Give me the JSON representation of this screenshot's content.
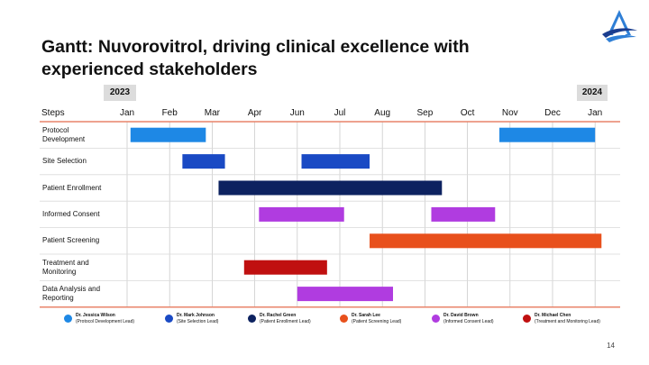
{
  "slide": {
    "title": "Gantt: Nuvorovitrol, driving clinical excellence with experienced stakeholders",
    "page_number": "14",
    "year_left": "2023",
    "year_right": "2024",
    "steps_header": "Steps"
  },
  "colors": {
    "divider": "#e8846a",
    "grid": "#cccccc",
    "row_line": "#d9d9d9"
  },
  "chart_data": {
    "type": "gantt",
    "title": "",
    "months": [
      "Jan",
      "Feb",
      "Mar",
      "Apr",
      "Jun",
      "Jul",
      "Aug",
      "Sep",
      "Oct",
      "Nov",
      "Dec",
      "Jan"
    ],
    "tasks": [
      {
        "name": "Protocol Development",
        "color": "#1e88e5",
        "bars": [
          [
            0.08,
            1.85
          ],
          [
            8.75,
            11.0
          ]
        ]
      },
      {
        "name": "Site Selection",
        "color": "#1a4ac4",
        "bars": [
          [
            1.3,
            2.3
          ],
          [
            4.1,
            5.7
          ]
        ]
      },
      {
        "name": "Patient Enrollment",
        "color": "#0d2260",
        "bars": [
          [
            2.15,
            7.4
          ]
        ]
      },
      {
        "name": "Informed Consent",
        "color": "#b03ce0",
        "bars": [
          [
            3.1,
            5.1
          ],
          [
            7.15,
            8.65
          ]
        ]
      },
      {
        "name": "Patient Screening",
        "color": "#e8501c",
        "bars": [
          [
            5.7,
            11.15
          ]
        ]
      },
      {
        "name": "Treatment and Monitoring",
        "color": "#c01010",
        "bars": [
          [
            2.75,
            4.7
          ]
        ]
      },
      {
        "name": "Data Analysis and Reporting",
        "color": "#b03ce0",
        "bars": [
          [
            4.0,
            6.25
          ]
        ]
      }
    ],
    "legend": [
      {
        "name": "Dr. Jessica Wilson",
        "role": "(Protocol Development Lead)",
        "color": "#1e88e5"
      },
      {
        "name": "Dr. Mark Johnson",
        "role": "(Site Selection Lead)",
        "color": "#1a4ac4"
      },
      {
        "name": "Dr. Rachel Green",
        "role": "(Patient Enrollment Lead)",
        "color": "#0d2260"
      },
      {
        "name": "Dr. Sarah Lee",
        "role": "(Patient Screening Lead)",
        "color": "#e8501c"
      },
      {
        "name": "Dr. David Brown",
        "role": "(Informed Consent Lead)",
        "color": "#b03ce0"
      },
      {
        "name": "Dr. Michael Chen",
        "role": "(Treatment and Monitoring Lead)",
        "color": "#c01010"
      }
    ]
  }
}
